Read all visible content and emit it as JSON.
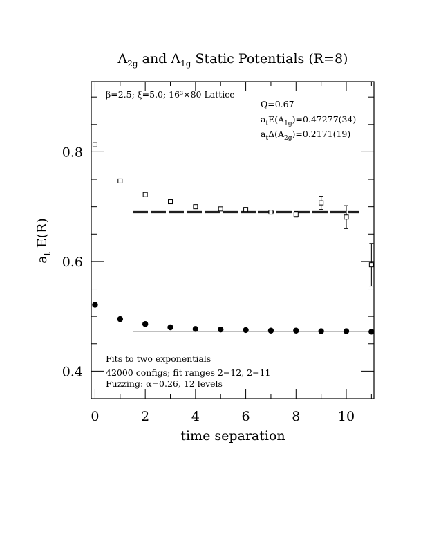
{
  "chart_data": {
    "type": "scatter",
    "title": {
      "pre": "A",
      "sub1": "2g",
      "mid": " and A",
      "sub2": "1g",
      "post": " Static Potentials (R=8)"
    },
    "xlabel": "time separation",
    "ylabel": {
      "main": "a",
      "sub": "t",
      "rest": " E(R)"
    },
    "xlim": [
      -0.15,
      11.1
    ],
    "ylim": [
      0.35,
      0.928
    ],
    "x_ticks": [
      0,
      2,
      4,
      6,
      8,
      10
    ],
    "x_tick_labels": [
      "0",
      "2",
      "4",
      "6",
      "8",
      "10"
    ],
    "y_ticks": [
      0.4,
      0.6,
      0.8
    ],
    "y_tick_labels": [
      "0.4",
      "0.6",
      "0.8"
    ],
    "x_minor_step": 1,
    "y_minor_step": 0.05,
    "grid": false,
    "series": [
      {
        "marker": "open-square",
        "points": [
          {
            "x": 0,
            "y": 0.813,
            "err": 0
          },
          {
            "x": 1,
            "y": 0.747,
            "err": 0
          },
          {
            "x": 2,
            "y": 0.722,
            "err": 0
          },
          {
            "x": 3,
            "y": 0.709,
            "err": 0
          },
          {
            "x": 4,
            "y": 0.7,
            "err": 0
          },
          {
            "x": 5,
            "y": 0.696,
            "err": 0
          },
          {
            "x": 6,
            "y": 0.695,
            "err": 0
          },
          {
            "x": 7,
            "y": 0.69,
            "err": 0.003
          },
          {
            "x": 8,
            "y": 0.686,
            "err": 0.005
          },
          {
            "x": 9,
            "y": 0.707,
            "err": 0.012
          },
          {
            "x": 10,
            "y": 0.681,
            "err": 0.021
          },
          {
            "x": 11,
            "y": 0.594,
            "err": 0.039
          }
        ]
      },
      {
        "marker": "filled-circle",
        "points": [
          {
            "x": 0,
            "y": 0.521
          },
          {
            "x": 1,
            "y": 0.495
          },
          {
            "x": 2,
            "y": 0.486
          },
          {
            "x": 3,
            "y": 0.48
          },
          {
            "x": 4,
            "y": 0.477
          },
          {
            "x": 5,
            "y": 0.476
          },
          {
            "x": 6,
            "y": 0.475
          },
          {
            "x": 7,
            "y": 0.474
          },
          {
            "x": 8,
            "y": 0.474
          },
          {
            "x": 9,
            "y": 0.473
          },
          {
            "x": 10,
            "y": 0.473
          },
          {
            "x": 11,
            "y": 0.472
          }
        ]
      }
    ],
    "fit_lines": [
      {
        "x_start": 1.5,
        "x_end": 10.5,
        "values": [
          0.6915,
          0.689,
          0.6865
        ]
      },
      {
        "x_start": 1.5,
        "x_end": 11.0,
        "values": [
          0.4727
        ]
      }
    ],
    "annotations": {
      "lattice": "β=2.5; ξ=5.0; 16³×80 Lattice",
      "q": "Q=0.67",
      "e1g": {
        "pre": "a",
        "sub": "t",
        "mid": "E(A",
        "sub2": "1g",
        "post": ")=0.47277(34)"
      },
      "d2g": {
        "pre": "a",
        "sub": "t",
        "mid": "Δ(A",
        "sub2": "2g",
        "post": ")=0.2171(19)"
      },
      "fits": "Fits to two exponentials",
      "configs": "42000 configs; fit ranges 2−12, 2−11",
      "fuzzing": "Fuzzing: α=0.26, 12 levels"
    }
  }
}
